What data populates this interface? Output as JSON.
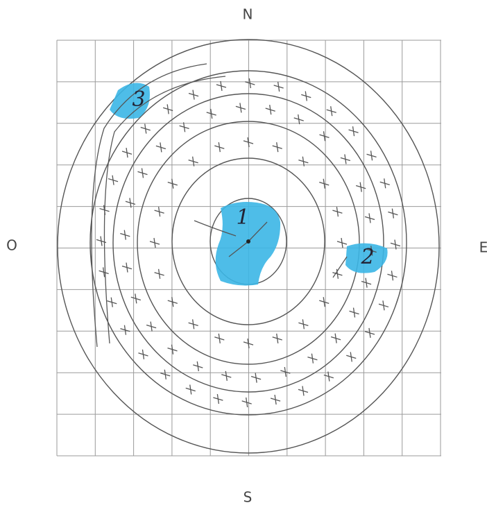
{
  "compass": {
    "north": "N",
    "south": "S",
    "west": "O",
    "east": "E"
  },
  "markers": [
    "1",
    "2",
    "3"
  ]
}
